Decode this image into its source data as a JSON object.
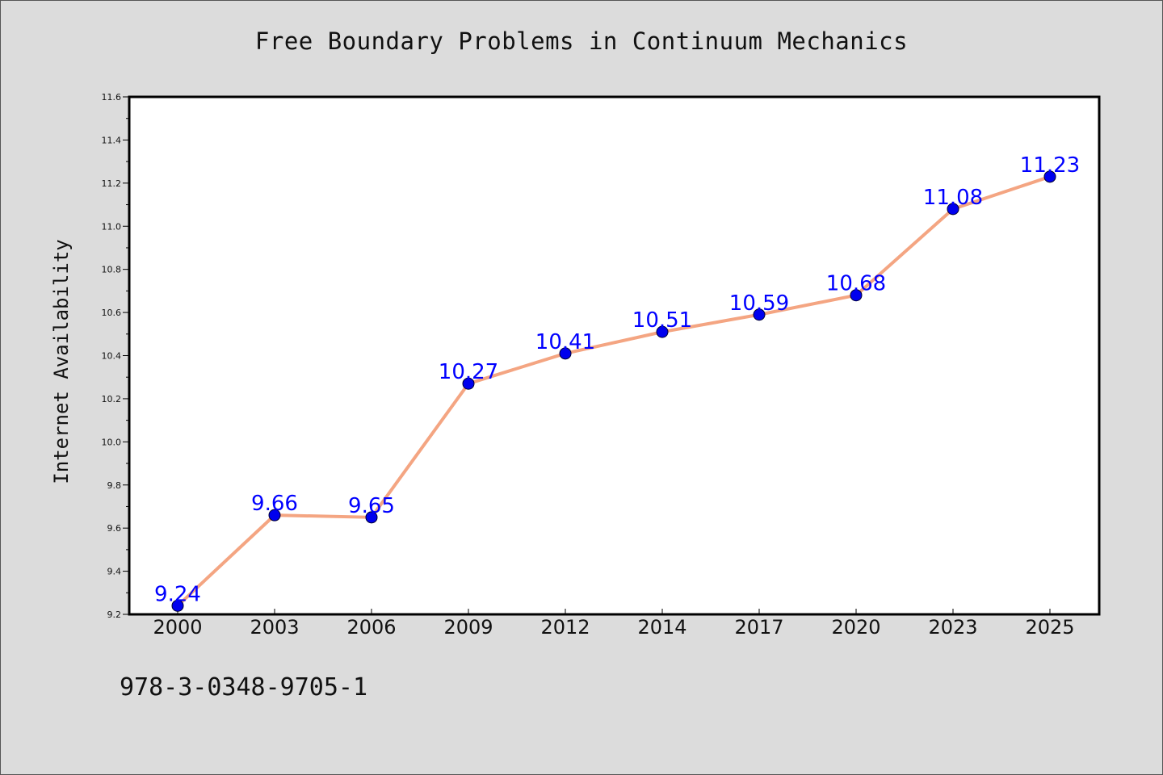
{
  "chart_data": {
    "type": "line",
    "title": "Free Boundary Problems in Continuum Mechanics",
    "xlabel": "",
    "ylabel": "Internet Availability",
    "categories": [
      "2000",
      "2003",
      "2006",
      "2009",
      "2012",
      "2014",
      "2017",
      "2020",
      "2023",
      "2025"
    ],
    "series": [
      {
        "values": [
          9.24,
          9.66,
          9.65,
          10.27,
          10.41,
          10.51,
          10.59,
          10.68,
          11.08,
          11.23
        ],
        "line_color": "#f4a582",
        "marker_color": "#0000ee"
      }
    ],
    "data_labels": [
      "9.24",
      "9.66",
      "9.65",
      "10.27",
      "10.41",
      "10.51",
      "10.59",
      "10.68",
      "11.08",
      "11.23"
    ],
    "ylim": [
      9.2,
      11.6
    ],
    "yticks": [
      "9.2",
      "9.4",
      "9.6",
      "9.8",
      "10.0",
      "10.2",
      "10.4",
      "10.6",
      "10.8",
      "11.0",
      "11.2",
      "11.4",
      "11.6"
    ],
    "grid": false,
    "legend": "none",
    "label_color": "#0000ff"
  },
  "footer": {
    "code": "978-3-0348-9705-1"
  }
}
